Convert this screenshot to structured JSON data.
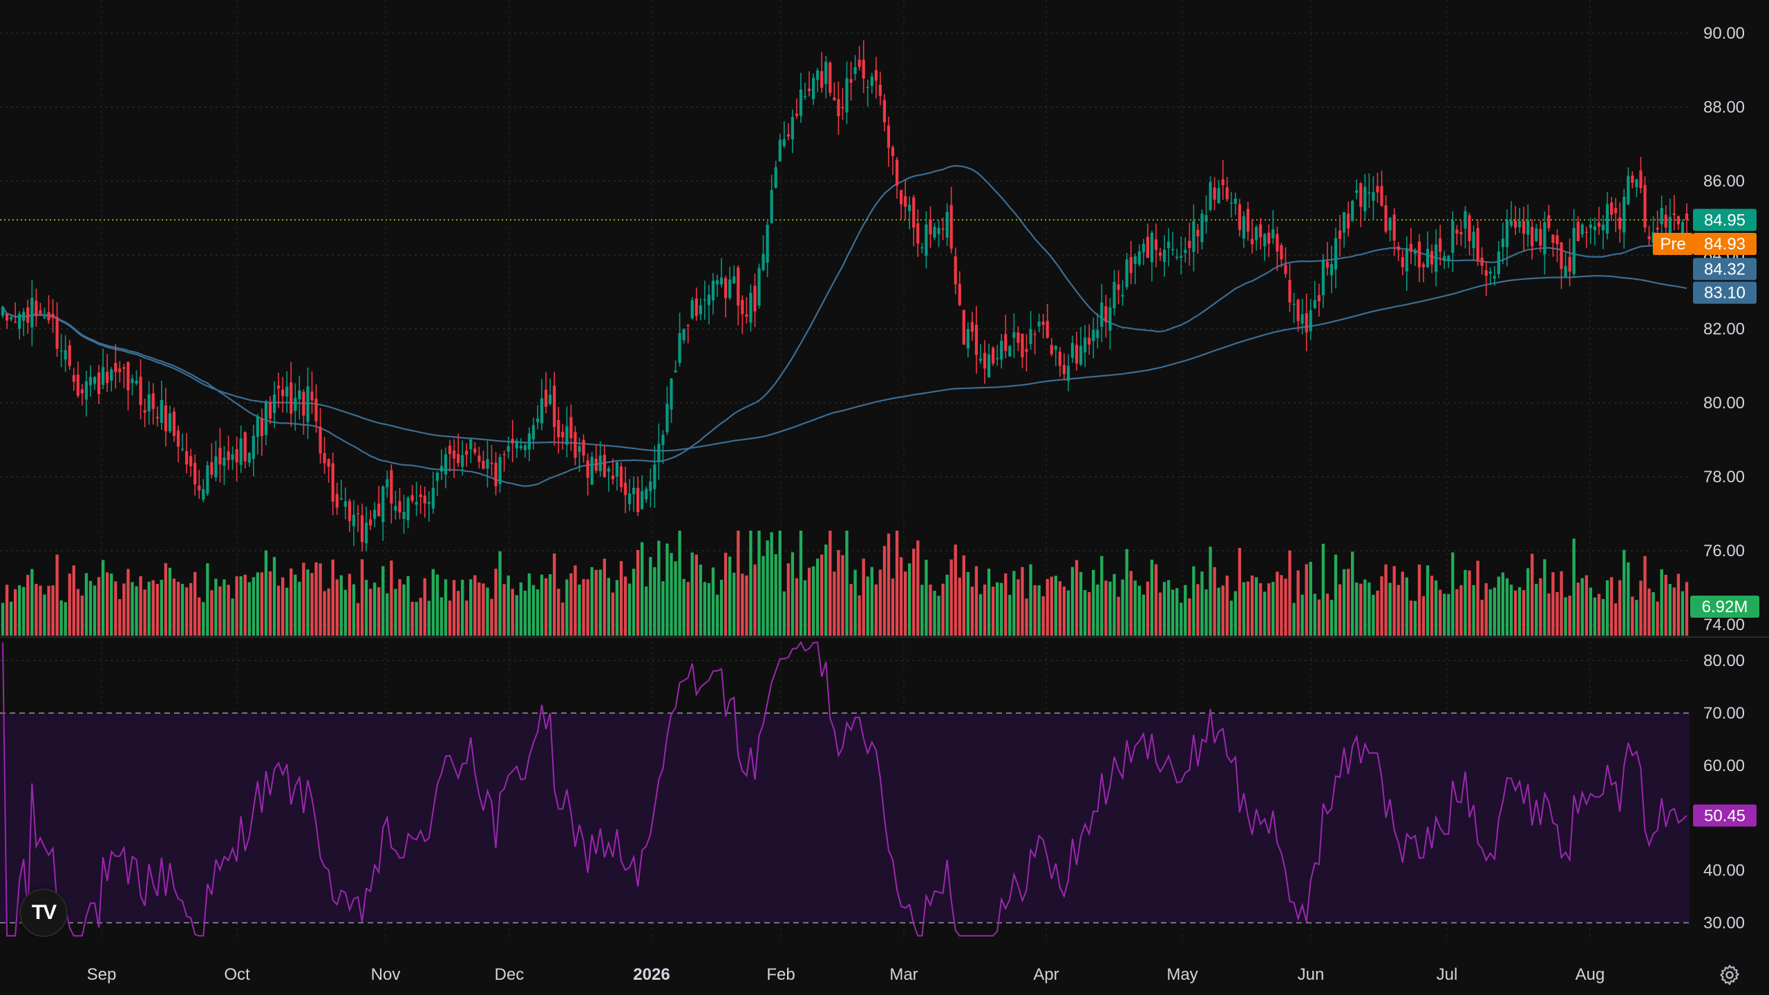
{
  "chart_data": {
    "type": "candlestick",
    "panes": [
      {
        "name": "price",
        "ylim": [
          73.7,
          90.9
        ],
        "y_ticks": [
          "74.00",
          "76.00",
          "78.00",
          "80.00",
          "82.00",
          "84.00",
          "86.00",
          "88.00",
          "90.00"
        ],
        "y_tick_values": [
          74,
          76,
          78,
          80,
          82,
          84,
          86,
          88,
          90
        ],
        "x_labels": [
          {
            "label": "Sep",
            "bold": false
          },
          {
            "label": "Oct",
            "bold": false
          },
          {
            "label": "Nov",
            "bold": false
          },
          {
            "label": "Dec",
            "bold": false
          },
          {
            "label": "2026",
            "bold": true
          },
          {
            "label": "Feb",
            "bold": false
          },
          {
            "label": "Mar",
            "bold": false
          },
          {
            "label": "Apr",
            "bold": false
          },
          {
            "label": "May",
            "bold": false
          },
          {
            "label": "Jun",
            "bold": false
          },
          {
            "label": "Jul",
            "bold": false
          },
          {
            "label": "Aug",
            "bold": false
          }
        ],
        "close_anchors": [
          [
            0,
            82.2
          ],
          [
            10,
            82.5
          ],
          [
            18,
            80.6
          ],
          [
            30,
            80.5
          ],
          [
            40,
            79.5
          ],
          [
            46,
            77.9
          ],
          [
            55,
            78.4
          ],
          [
            66,
            80.1
          ],
          [
            74,
            80.0
          ],
          [
            80,
            77.1
          ],
          [
            86,
            76.5
          ],
          [
            92,
            77.5
          ],
          [
            98,
            77.0
          ],
          [
            104,
            78.0
          ],
          [
            112,
            79.0
          ],
          [
            118,
            78.0
          ],
          [
            124,
            79.0
          ],
          [
            130,
            80.0
          ],
          [
            137,
            78.5
          ],
          [
            146,
            78.2
          ],
          [
            152,
            77.2
          ],
          [
            156,
            78.0
          ],
          [
            160,
            80.5
          ],
          [
            164,
            82.5
          ],
          [
            174,
            83.2
          ],
          [
            180,
            82.5
          ],
          [
            184,
            86.0
          ],
          [
            190,
            88.0
          ],
          [
            197,
            89.0
          ],
          [
            200,
            88.0
          ],
          [
            205,
            89.5
          ],
          [
            210,
            88.0
          ],
          [
            214,
            86.0
          ],
          [
            220,
            84.5
          ],
          [
            226,
            85.0
          ],
          [
            230,
            82.0
          ],
          [
            236,
            81.2
          ],
          [
            242,
            81.5
          ],
          [
            248,
            82.0
          ],
          [
            254,
            81.0
          ],
          [
            258,
            81.5
          ],
          [
            264,
            82.5
          ],
          [
            268,
            83.3
          ],
          [
            274,
            84.2
          ],
          [
            278,
            84.5
          ],
          [
            283,
            83.8
          ],
          [
            288,
            85.5
          ],
          [
            292,
            86.0
          ],
          [
            298,
            84.5
          ],
          [
            304,
            84.7
          ],
          [
            308,
            82.5
          ],
          [
            312,
            82.2
          ],
          [
            316,
            83.5
          ],
          [
            320,
            84.5
          ],
          [
            324,
            85.5
          ],
          [
            328,
            86.0
          ],
          [
            334,
            84.0
          ],
          [
            338,
            83.8
          ],
          [
            344,
            84.0
          ],
          [
            350,
            85.0
          ],
          [
            356,
            83.5
          ],
          [
            360,
            85.0
          ],
          [
            364,
            84.5
          ],
          [
            370,
            84.8
          ],
          [
            374,
            83.6
          ],
          [
            378,
            85.0
          ],
          [
            382,
            85.2
          ],
          [
            386,
            84.8
          ],
          [
            390,
            86.0
          ],
          [
            394,
            84.8
          ],
          [
            398,
            84.9
          ],
          [
            403,
            84.95
          ]
        ],
        "volume_ylim_millions": [
          0,
          30
        ],
        "moving_averages": [
          {
            "name": "MA short",
            "color": "#3b6e95",
            "last_value": 84.32
          },
          {
            "name": "MA long",
            "color": "#3b6e95",
            "last_value": 83.1
          }
        ],
        "last_price": 84.95,
        "pre_market_price": 84.93,
        "last_volume": "6.92M",
        "up_color": "#089981",
        "down_color": "#f23645",
        "volume_up_color": "#22ab5a",
        "volume_down_color": "#e0454d"
      },
      {
        "name": "rsi",
        "ylim": [
          26.5,
          84.5
        ],
        "y_ticks": [
          "30.00",
          "40.00",
          "50.00",
          "60.00",
          "70.00",
          "80.00"
        ],
        "y_tick_values": [
          30,
          40,
          50,
          60,
          70,
          80
        ],
        "upper_band": 70,
        "lower_band": 30,
        "last_value": 50.45,
        "line_color": "#9c27b0",
        "band_fill": "#1e0f2d"
      }
    ],
    "grid": true
  },
  "badges": {
    "last_price": "84.95",
    "pre_label": "Pre",
    "pre_price": "84.93",
    "ma_short": "84.32",
    "ma_long": "83.10",
    "volume": "6.92M",
    "rsi": "50.45"
  },
  "brand": {
    "logo_text": "TV",
    "logo_icon": "tradingview-logo-icon",
    "settings_icon": "gear-icon"
  }
}
